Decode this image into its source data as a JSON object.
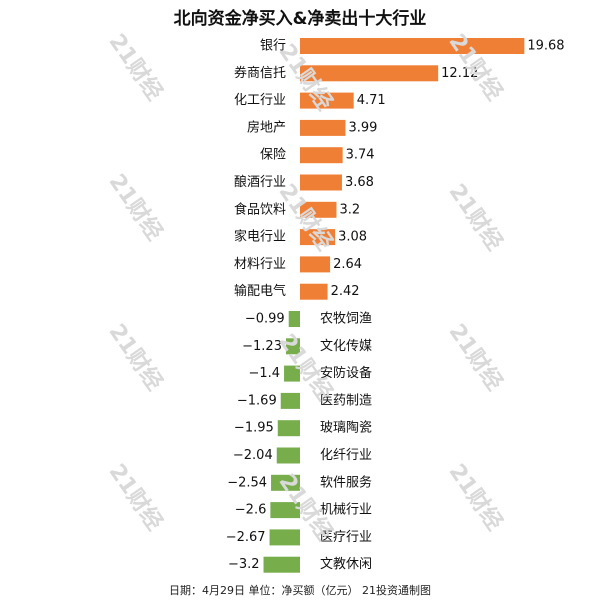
{
  "chart_data": {
    "type": "bar",
    "orientation": "horizontal",
    "title": "北向资金净买入&净卖出十大行业",
    "categories": [
      "银行",
      "券商信托",
      "化工行业",
      "房地产",
      "保险",
      "酿酒行业",
      "食品饮料",
      "家电行业",
      "材料行业",
      "输配电气",
      "农牧饲渔",
      "文化传媒",
      "安防设备",
      "医药制造",
      "玻璃陶瓷",
      "化纤行业",
      "软件服务",
      "机械行业",
      "医疗行业",
      "文教休闲"
    ],
    "values": [
      19.68,
      12.12,
      4.71,
      3.99,
      3.74,
      3.68,
      3.2,
      3.08,
      2.64,
      2.42,
      -0.99,
      -1.23,
      -1.4,
      -1.69,
      -1.95,
      -2.04,
      -2.54,
      -2.6,
      -2.67,
      -3.2
    ],
    "value_labels": [
      "19.68",
      "12.12",
      "4.71",
      "3.99",
      "3.74",
      "3.68",
      "3.2",
      "3.08",
      "2.64",
      "2.42",
      "−0.99",
      "−1.23",
      "−1.4",
      "−1.69",
      "−1.95",
      "−2.04",
      "−2.54",
      "−2.6",
      "−2.67",
      "−3.2"
    ],
    "colors": {
      "positive": "#f07f36",
      "negative": "#78ad4c"
    },
    "xlim": [
      -3.2,
      19.68
    ],
    "grid": false,
    "legend": "none"
  },
  "footer": "日期：4月29日  单位：净买额（亿元）  21投资通制图",
  "watermark_text": "21财经"
}
